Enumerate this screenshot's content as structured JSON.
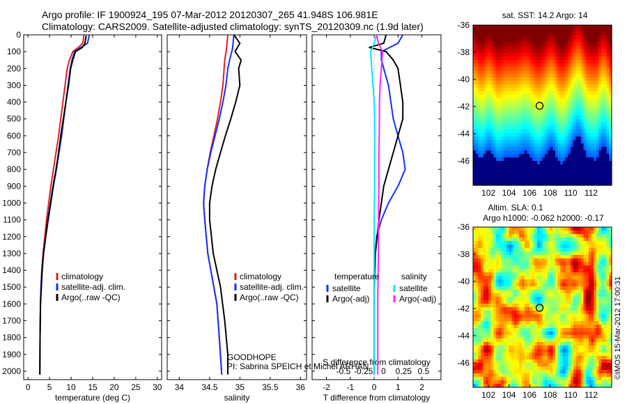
{
  "header": {
    "line1": "Argo profile: IF 1900924_195 07-Mar-2012 20120307_265 41.948S 106.981E",
    "line2": "Climatology: CARS2009. Satellite-adjusted climatology: synTS_20120309.nc (1.9d later)"
  },
  "annotations": {
    "project": "GOODHOPE",
    "pi": "PI: Sabrina SPEICH et Michel ARHAN",
    "side_stamp": "©IMOS 15-Mar-2012 17:00:31"
  },
  "colors": {
    "climatology": "#e41a1c",
    "satellite": "#1030ff",
    "argo": "#000000",
    "cyan": "#00e5ff",
    "magenta": "#ff22ff"
  },
  "chart_data": [
    {
      "id": "temperature",
      "type": "line",
      "xlabel": "temperature (deg C)",
      "ylabel": "",
      "xlim": [
        -1,
        31
      ],
      "ylim": [
        2050,
        0
      ],
      "xticks": [
        0,
        5,
        10,
        15,
        20,
        25,
        30
      ],
      "yticks": [
        0,
        100,
        200,
        300,
        400,
        500,
        600,
        700,
        800,
        900,
        1000,
        1100,
        1200,
        1300,
        1400,
        1500,
        1600,
        1700,
        1800,
        1900,
        2000
      ],
      "legend": [
        "climatology",
        "satellite-adj. clim.",
        "Argo(..raw -QC)"
      ],
      "legend_position": "lower-right",
      "series": [
        {
          "name": "climatology",
          "color": "#e41a1c",
          "x": [
            13.0,
            12.7,
            11.7,
            10.4,
            9.6,
            9.1,
            8.6,
            8.1,
            7.6,
            7.1,
            6.5,
            5.9,
            5.3,
            4.8,
            4.3,
            3.9,
            3.5,
            3.2,
            3.0,
            2.9,
            2.8,
            2.75
          ],
          "y": [
            0,
            50,
            75,
            100,
            150,
            200,
            300,
            400,
            500,
            600,
            700,
            800,
            900,
            1000,
            1100,
            1200,
            1300,
            1400,
            1500,
            1600,
            1800,
            2020
          ]
        },
        {
          "name": "satellite-adj. clim.",
          "color": "#1030ff",
          "x": [
            14.2,
            13.8,
            12.3,
            10.8,
            10.2,
            9.8,
            9.3,
            8.8,
            8.3,
            7.8,
            7.2,
            6.6,
            5.9,
            5.3,
            4.7,
            4.1,
            3.6,
            3.2,
            3.0,
            2.9,
            2.8,
            2.75
          ],
          "y": [
            0,
            50,
            75,
            100,
            150,
            200,
            300,
            400,
            500,
            600,
            700,
            800,
            900,
            1000,
            1100,
            1200,
            1300,
            1400,
            1500,
            1600,
            1800,
            2020
          ]
        },
        {
          "name": "Argo(..raw -QC)",
          "color": "#000000",
          "x": [
            13.5,
            13.2,
            12.6,
            11.0,
            10.4,
            9.9,
            9.4,
            8.8,
            8.2,
            7.6,
            7.1,
            6.5,
            5.8,
            5.2,
            4.6,
            4.1,
            3.6,
            3.3,
            3.1,
            2.9,
            2.8,
            2.75
          ],
          "y": [
            5,
            50,
            75,
            100,
            150,
            200,
            300,
            400,
            500,
            600,
            700,
            800,
            900,
            1000,
            1100,
            1200,
            1300,
            1400,
            1500,
            1600,
            1800,
            2020
          ]
        }
      ]
    },
    {
      "id": "salinity",
      "type": "line",
      "xlabel": "salinity",
      "ylabel": "",
      "xlim": [
        33.8,
        36.1
      ],
      "ylim": [
        2050,
        0
      ],
      "xticks": [
        34,
        34.5,
        35,
        35.5,
        36
      ],
      "legend": [
        "climatology",
        "satellite-adj. clim.",
        "Argo(..raw -QC)"
      ],
      "legend_position": "lower-right",
      "series": [
        {
          "name": "climatology",
          "color": "#e41a1c",
          "x": [
            34.8,
            34.78,
            34.75,
            34.74,
            34.72,
            34.68,
            34.63,
            34.57,
            34.51,
            34.46,
            34.42,
            34.4,
            34.42,
            34.47,
            34.52,
            34.57,
            34.62,
            34.66,
            34.7
          ],
          "y": [
            0,
            80,
            150,
            200,
            300,
            400,
            500,
            600,
            700,
            800,
            900,
            1000,
            1100,
            1300,
            1400,
            1500,
            1600,
            1800,
            2020
          ]
        },
        {
          "name": "satellite-adj. clim.",
          "color": "#1030ff",
          "x": [
            34.9,
            34.88,
            34.83,
            34.8,
            34.77,
            34.72,
            34.66,
            34.59,
            34.52,
            34.46,
            34.42,
            34.4,
            34.42,
            34.47,
            34.52,
            34.57,
            34.62,
            34.66,
            34.7
          ],
          "y": [
            0,
            80,
            150,
            200,
            300,
            400,
            500,
            600,
            700,
            800,
            900,
            1000,
            1100,
            1300,
            1400,
            1500,
            1600,
            1800,
            2020
          ]
        },
        {
          "name": "Argo(..raw -QC)",
          "color": "#000000",
          "x": [
            34.9,
            35.0,
            34.92,
            35.02,
            34.98,
            35.0,
            34.93,
            34.85,
            34.76,
            34.68,
            34.6,
            34.54,
            34.5,
            34.5,
            34.56,
            34.62,
            34.68,
            34.75,
            34.8,
            34.8
          ],
          "y": [
            0,
            50,
            100,
            150,
            200,
            300,
            400,
            500,
            600,
            700,
            800,
            900,
            1000,
            1100,
            1300,
            1400,
            1500,
            1700,
            1900,
            2020
          ]
        }
      ]
    },
    {
      "id": "differences",
      "type": "line",
      "xlabel": "T difference from climatology",
      "xlabel_top": "S difference from climatology",
      "xlim": [
        -2.6,
        2.8
      ],
      "ylim": [
        2050,
        0
      ],
      "xticks": [
        -2,
        -1,
        0,
        1,
        2
      ],
      "top_ticks": [
        "-0.5",
        "-0.25",
        "0",
        "0.25",
        "0.5"
      ],
      "legend": [
        {
          "group": "temperature",
          "entries": [
            "satellite",
            "Argo(-adj)"
          ]
        },
        {
          "group": "salinity",
          "entries": [
            "satellite",
            "Argo(-adj)"
          ]
        }
      ],
      "legend_position": "lower-center",
      "series": [
        {
          "name": "satellite",
          "group": "temperature",
          "color": "#1030ff",
          "x": [
            1.2,
            1.0,
            0.3,
            0.3,
            0.4,
            0.6,
            0.7,
            0.8,
            1.0,
            1.2,
            1.3,
            1.0,
            0.6,
            0.3,
            0.1,
            0.0,
            0.0,
            0.0
          ],
          "y": [
            0,
            50,
            100,
            150,
            200,
            300,
            400,
            500,
            600,
            700,
            800,
            900,
            1000,
            1100,
            1200,
            1400,
            1600,
            2020
          ]
        },
        {
          "name": "Argo(-adj)",
          "group": "temperature",
          "color": "#000000",
          "x": [
            0.5,
            0.4,
            -0.2,
            0.5,
            0.8,
            1.0,
            1.1,
            1.2,
            1.2,
            1.0,
            0.8,
            0.6,
            0.4,
            0.3,
            0.2,
            0.05,
            0.0,
            0.0
          ],
          "y": [
            0,
            50,
            75,
            100,
            150,
            200,
            300,
            400,
            500,
            600,
            700,
            800,
            900,
            1000,
            1100,
            1300,
            1500,
            2020
          ]
        },
        {
          "name": "satellite",
          "group": "salinity",
          "color": "#00e5ff",
          "x": [
            0.1,
            0.0,
            -0.15,
            -0.1,
            -0.05,
            0.0,
            0.02,
            0.02,
            0.02,
            0.0,
            0.0,
            0.0,
            0.0
          ],
          "y": [
            0,
            50,
            100,
            200,
            300,
            400,
            500,
            700,
            900,
            1100,
            1300,
            1600,
            2020
          ]
        },
        {
          "name": "Argo(-adj)",
          "group": "salinity",
          "color": "#ff22ff",
          "x": [
            0.1,
            0.18,
            0.35,
            0.3,
            0.25,
            0.22,
            0.22,
            0.2,
            0.2,
            0.18,
            0.18,
            0.15,
            0.15
          ],
          "y": [
            0,
            50,
            100,
            200,
            300,
            400,
            500,
            700,
            900,
            1100,
            1300,
            1600,
            2020
          ]
        }
      ]
    },
    {
      "id": "sst_map",
      "type": "heatmap",
      "title": "sat. SST: 14.2 Argo: 14",
      "xlim": [
        100.5,
        114
      ],
      "ylim": [
        -47.8,
        -36
      ],
      "xticks": [
        102,
        104,
        106,
        108,
        110,
        112
      ],
      "yticks": [
        -36,
        -38,
        -40,
        -42,
        -44,
        -46
      ],
      "marker": {
        "lon": 106.981,
        "lat": -41.948
      }
    },
    {
      "id": "sla_map",
      "type": "heatmap",
      "title_line1": "Altim. SLA: 0.1",
      "title_line2": "Argo h1000: -0.062 h2000: -0.17",
      "xlim": [
        100.5,
        114
      ],
      "ylim": [
        -47.8,
        -36
      ],
      "xticks": [
        102,
        104,
        106,
        108,
        110,
        112
      ],
      "yticks": [
        -36,
        -38,
        -40,
        -42,
        -44,
        -46
      ],
      "marker": {
        "lon": 106.981,
        "lat": -41.948
      }
    }
  ]
}
